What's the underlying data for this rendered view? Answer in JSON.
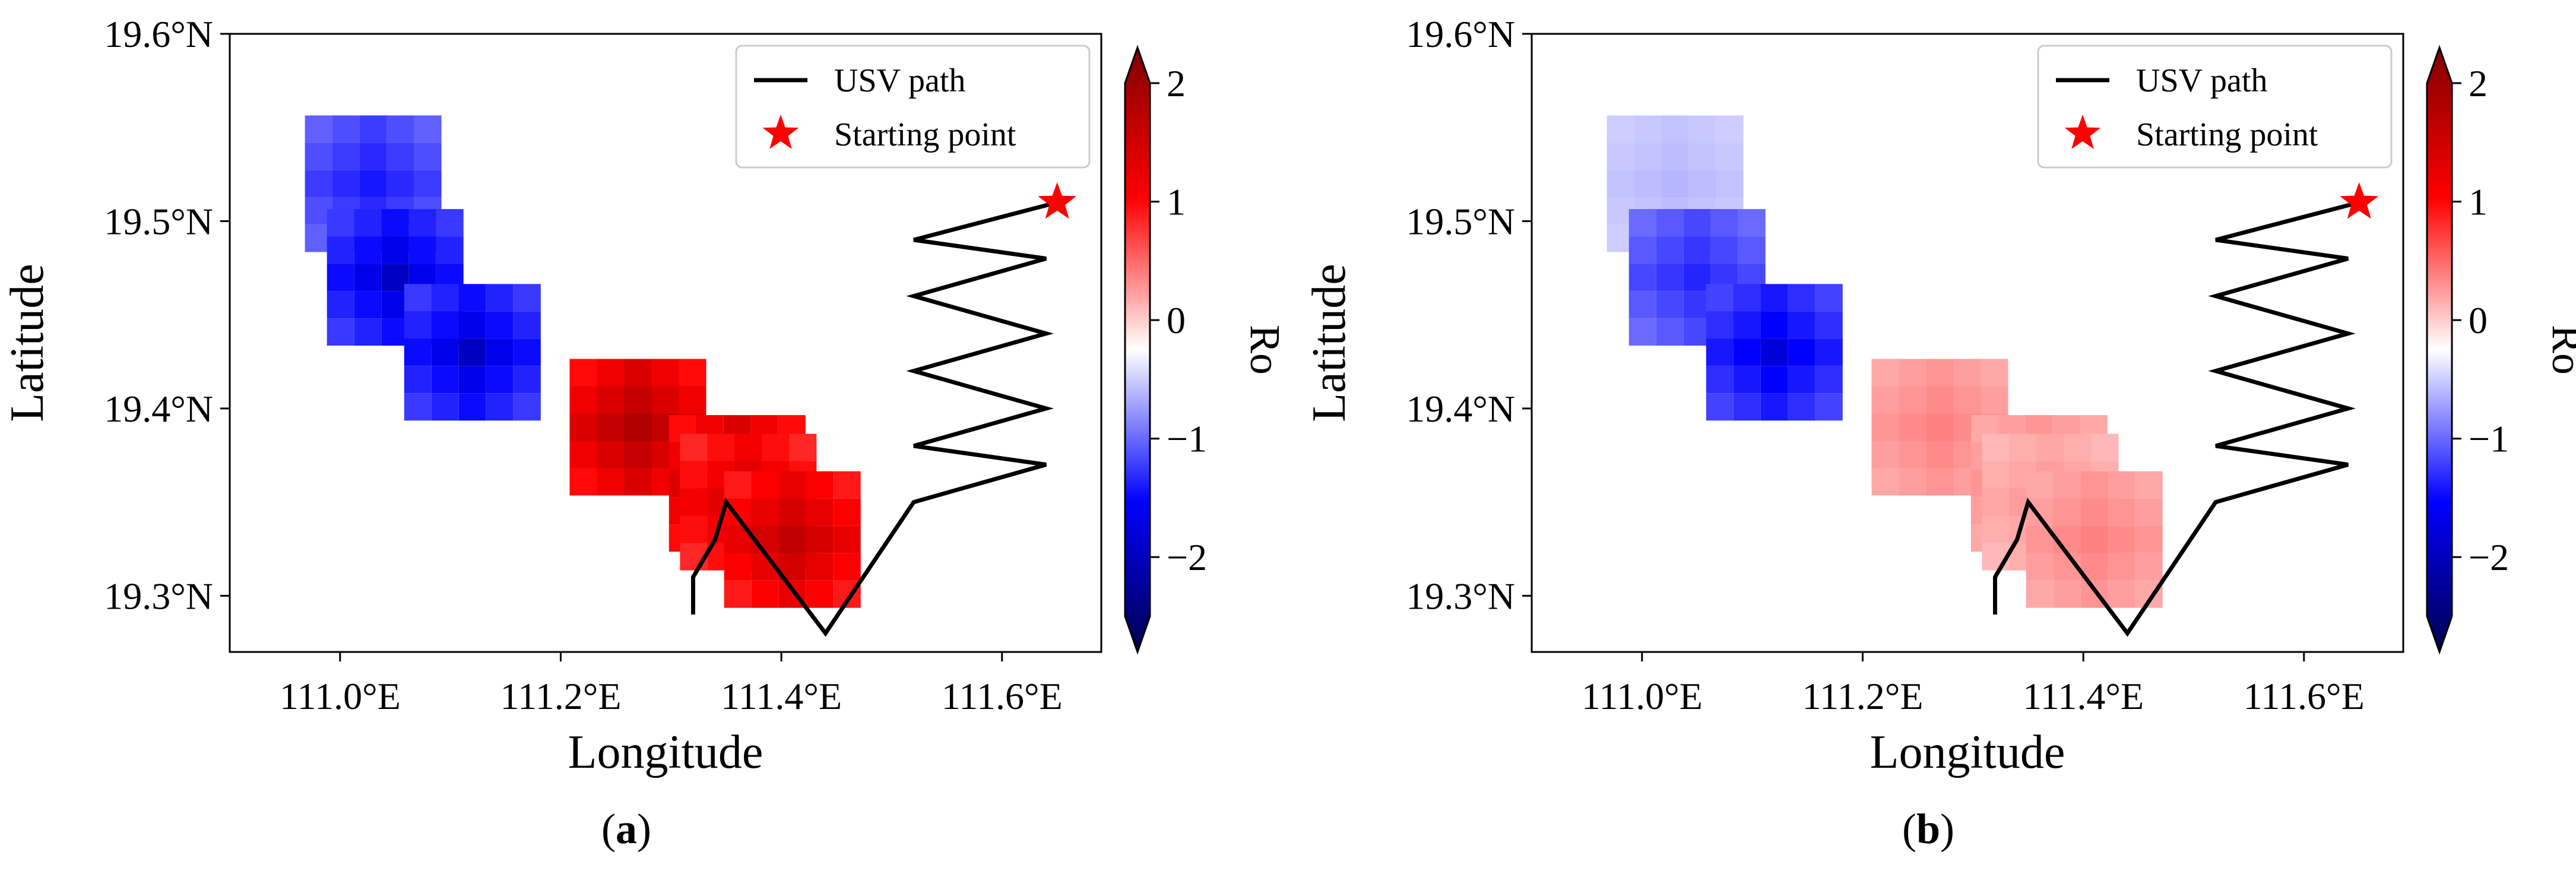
{
  "chart_data": [
    {
      "type": "heatmap",
      "panel_label": "a",
      "xlabel": "Longitude",
      "ylabel": "Latitude",
      "xlim": [
        110.9,
        111.69
      ],
      "ylim": [
        19.27,
        19.6
      ],
      "xticks": [
        111.0,
        111.2,
        111.4,
        111.6
      ],
      "xtick_labels": [
        "111.0°E",
        "111.2°E",
        "111.4°E",
        "111.6°E"
      ],
      "yticks": [
        19.3,
        19.4,
        19.5,
        19.6
      ],
      "ytick_labels": [
        "19.3°N",
        "19.4°N",
        "19.5°N",
        "19.6°N"
      ],
      "legend": {
        "position": "top-right",
        "entries": [
          {
            "label": "USV path",
            "marker": "line",
            "color": "#000000"
          },
          {
            "label": "Starting point",
            "marker": "star",
            "color": "#ff0000"
          }
        ]
      },
      "colorbar": {
        "label": "Ro",
        "range": [
          -2.5,
          2.0
        ],
        "ticks": [
          2,
          1,
          0,
          -1,
          -2
        ],
        "tick_labels": [
          "2",
          "1",
          "0",
          "−1",
          "−2"
        ],
        "colormap": "seismic"
      },
      "ro_cells": [
        {
          "lon": 111.03,
          "lat": 19.52,
          "ro": -1.6
        },
        {
          "lon": 111.05,
          "lat": 19.47,
          "ro": -2.0
        },
        {
          "lon": 111.12,
          "lat": 19.43,
          "ro": -2.0
        },
        {
          "lon": 111.27,
          "lat": 19.39,
          "ro": 1.7
        },
        {
          "lon": 111.36,
          "lat": 19.36,
          "ro": 1.7
        },
        {
          "lon": 111.37,
          "lat": 19.35,
          "ro": 1.5
        },
        {
          "lon": 111.41,
          "lat": 19.33,
          "ro": 1.6
        }
      ],
      "path": {
        "lon": [
          111.65,
          111.52,
          111.64,
          111.52,
          111.64,
          111.52,
          111.64,
          111.52,
          111.64,
          111.52,
          111.44,
          111.35,
          111.34,
          111.32,
          111.32
        ],
        "lat": [
          19.51,
          19.49,
          19.48,
          19.46,
          19.44,
          19.42,
          19.4,
          19.38,
          19.37,
          19.35,
          19.28,
          19.35,
          19.33,
          19.31,
          19.29
        ]
      },
      "starting_point": {
        "lon": 111.65,
        "lat": 19.51
      }
    },
    {
      "type": "heatmap",
      "panel_label": "b",
      "xlabel": "Longitude",
      "ylabel": "Latitude",
      "xlim": [
        110.9,
        111.69
      ],
      "ylim": [
        19.27,
        19.6
      ],
      "xticks": [
        111.0,
        111.2,
        111.4,
        111.6
      ],
      "xtick_labels": [
        "111.0°E",
        "111.2°E",
        "111.4°E",
        "111.6°E"
      ],
      "yticks": [
        19.3,
        19.4,
        19.5,
        19.6
      ],
      "ytick_labels": [
        "19.3°N",
        "19.4°N",
        "19.5°N",
        "19.6°N"
      ],
      "legend": {
        "position": "top-right",
        "entries": [
          {
            "label": "USV path",
            "marker": "line",
            "color": "#000000"
          },
          {
            "label": "Starting point",
            "marker": "star",
            "color": "#ff0000"
          }
        ]
      },
      "colorbar": {
        "label": "Ro",
        "range": [
          -2.5,
          2.0
        ],
        "ticks": [
          2,
          1,
          0,
          -1,
          -2
        ],
        "tick_labels": [
          "2",
          "1",
          "0",
          "−1",
          "−2"
        ],
        "colormap": "seismic"
      },
      "ro_cells": [
        {
          "lon": 111.03,
          "lat": 19.52,
          "ro": -0.5
        },
        {
          "lon": 111.05,
          "lat": 19.47,
          "ro": -1.5
        },
        {
          "lon": 111.12,
          "lat": 19.43,
          "ro": -1.9
        },
        {
          "lon": 111.27,
          "lat": 19.39,
          "ro": 0.6
        },
        {
          "lon": 111.36,
          "lat": 19.36,
          "ro": 0.6
        },
        {
          "lon": 111.37,
          "lat": 19.35,
          "ro": 0.5
        },
        {
          "lon": 111.41,
          "lat": 19.33,
          "ro": 0.6
        }
      ],
      "path": {
        "lon": [
          111.65,
          111.52,
          111.64,
          111.52,
          111.64,
          111.52,
          111.64,
          111.52,
          111.64,
          111.52,
          111.44,
          111.35,
          111.34,
          111.32,
          111.32
        ],
        "lat": [
          19.51,
          19.49,
          19.48,
          19.46,
          19.44,
          19.42,
          19.4,
          19.38,
          19.37,
          19.35,
          19.28,
          19.35,
          19.33,
          19.31,
          19.29
        ]
      },
      "starting_point": {
        "lon": 111.65,
        "lat": 19.51
      }
    }
  ]
}
